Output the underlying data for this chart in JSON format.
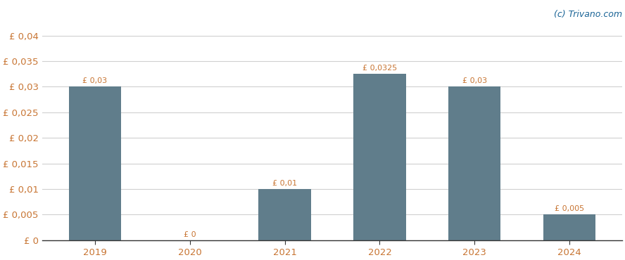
{
  "categories": [
    "2019",
    "2020",
    "2021",
    "2022",
    "2023",
    "2024"
  ],
  "values": [
    0.03,
    0.0,
    0.01,
    0.0325,
    0.03,
    0.005
  ],
  "bar_labels": [
    "£ 0,03",
    "£ 0",
    "£ 0,01",
    "£ 0,0325",
    "£ 0,03",
    "£ 0,005"
  ],
  "bar_color": "#607d8b",
  "background_color": "#ffffff",
  "ylim": [
    0,
    0.0425
  ],
  "yticks": [
    0.0,
    0.005,
    0.01,
    0.015,
    0.02,
    0.025,
    0.03,
    0.035,
    0.04
  ],
  "ytick_labels": [
    "£ 0",
    "£ 0,005",
    "£ 0,01",
    "£ 0,015",
    "£ 0,02",
    "£ 0,025",
    "£ 0,03",
    "£ 0,035",
    "£ 0,04"
  ],
  "watermark": "(c) Trivano.com",
  "watermark_color": "#1a6496",
  "label_color": "#c87533",
  "grid_color": "#d0d0d0",
  "label_fontsize": 8.0,
  "tick_fontsize": 9.5,
  "watermark_fontsize": 9,
  "bar_width": 0.55
}
